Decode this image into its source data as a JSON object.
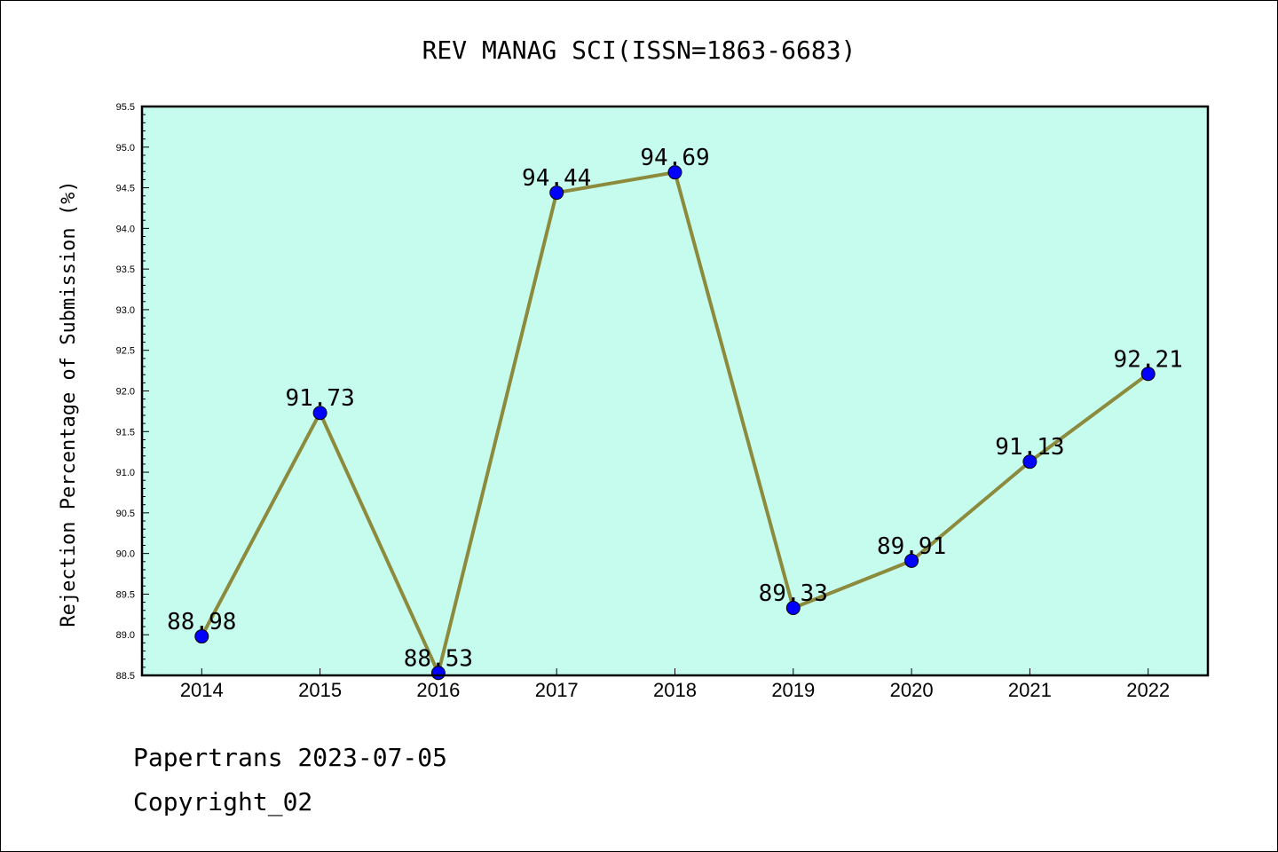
{
  "chart_data": {
    "type": "line",
    "title": "REV MANAG SCI(ISSN=1863-6683)",
    "ylabel": "Rejection Percentage of Submission (%)",
    "xlabel": "",
    "categories": [
      "2014",
      "2015",
      "2016",
      "2017",
      "2018",
      "2019",
      "2020",
      "2021",
      "2022"
    ],
    "series": [
      {
        "values": [
          88.98,
          91.73,
          88.53,
          94.44,
          94.69,
          89.33,
          89.91,
          91.13,
          92.21
        ]
      }
    ],
    "data_labels": [
      "88.98",
      "91.73",
      "88.53",
      "94.44",
      "94.69",
      "89.33",
      "89.91",
      "91.13",
      "92.21"
    ],
    "ylim": [
      88.5,
      95.5
    ],
    "yticks": [
      "88.5",
      "89.0",
      "89.5",
      "90.0",
      "90.5",
      "91.0",
      "91.5",
      "92.0",
      "92.5",
      "93.0",
      "93.5",
      "94.0",
      "94.5",
      "95.0",
      "95.5"
    ],
    "grid": false,
    "colors": {
      "plot_bg": "#c6fcee",
      "line": "#8c8a3c",
      "marker": "#0000ff"
    }
  },
  "footer": {
    "line1": "Papertrans 2023-07-05",
    "line2": "Copyright_02"
  }
}
